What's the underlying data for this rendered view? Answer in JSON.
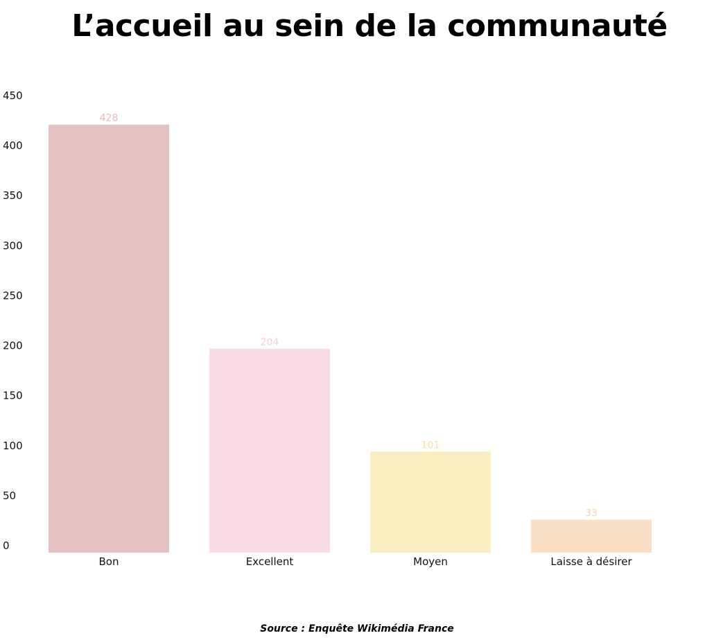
{
  "chart_data": {
    "type": "bar",
    "title": "L’accueil au sein de la communauté",
    "categories": [
      "Bon",
      "Excellent",
      "Moyen",
      "Laisse à désirer"
    ],
    "values": [
      428,
      204,
      101,
      33
    ],
    "colors": [
      "#e4c1c1",
      "#f9dce6",
      "#faeec0",
      "#fbdfc4"
    ],
    "label_colors": [
      "#e8b8b8",
      "#f5cdd8",
      "#f5e2a8",
      "#f7d2ae"
    ],
    "xlabel": "",
    "ylabel": "",
    "ylim": [
      0,
      450
    ],
    "yticks": [
      0,
      50,
      100,
      150,
      200,
      250,
      300,
      350,
      400,
      450
    ],
    "grid": false,
    "legend": "none"
  },
  "source": "Source : Enquête Wikimédia France"
}
